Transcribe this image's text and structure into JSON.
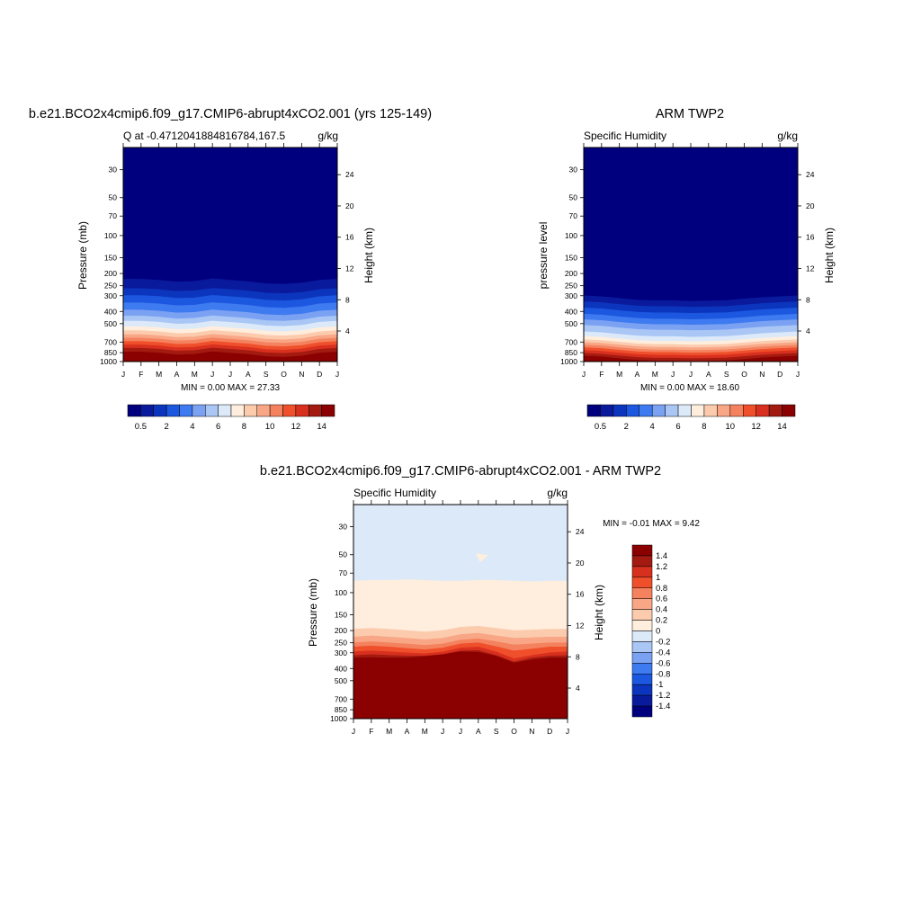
{
  "colors": {
    "seq": [
      "#00007f",
      "#0a1a9c",
      "#0c35bd",
      "#1c57e0",
      "#3e7af0",
      "#7ba1f2",
      "#a9c6f5",
      "#dbe9f9",
      "#ffeedd",
      "#fccbae",
      "#f8a686",
      "#f4825e",
      "#f04f2c",
      "#d7301f",
      "#a31a10",
      "#8b0000"
    ],
    "diff": [
      "#00007f",
      "#0a1a9c",
      "#0c35bd",
      "#1c57e0",
      "#3e7af0",
      "#7ba1f2",
      "#a9c6f5",
      "#dbe9f9",
      "#ffeedd",
      "#fccbae",
      "#f8a686",
      "#f4825e",
      "#f04f2c",
      "#d7301f",
      "#a31a10",
      "#8b0000"
    ]
  },
  "chart_data": [
    {
      "type": "heatmap",
      "id": "model",
      "title": "b.e21.BCO2x4cmip6.f09_g17.CMIP6-abrupt4xCO2.001 (yrs 125-149)",
      "left_subtitle": "Q at -0.4712041884816784,167.5",
      "right_subtitle": "g/kg",
      "ylabel": "Pressure (mb)",
      "y2label": "Height (km)",
      "x_months": [
        "J",
        "F",
        "M",
        "A",
        "M",
        "J",
        "J",
        "A",
        "S",
        "O",
        "N",
        "D",
        "J"
      ],
      "y_pressure_ticks": [
        30,
        50,
        70,
        100,
        150,
        200,
        250,
        300,
        400,
        500,
        700,
        850,
        1000
      ],
      "y2_height_ticks": [
        4,
        8,
        12,
        16,
        20,
        24
      ],
      "stats": "MIN =   0.00 MAX =  27.33",
      "colorbar_labels": [
        "0.5",
        "2",
        "4",
        "6",
        "8",
        "10",
        "12",
        "14"
      ],
      "levels": [
        0.5,
        1,
        2,
        3,
        4,
        5,
        6,
        7,
        8,
        9,
        10,
        11,
        12,
        13,
        14
      ],
      "pressure_at_level_by_month": [
        [
          222,
          222,
          226,
          233,
          231,
          220,
          226,
          232,
          241,
          243,
          238,
          226,
          222
        ],
        [
          263,
          263,
          268,
          277,
          274,
          262,
          268,
          275,
          286,
          289,
          283,
          268,
          263
        ],
        [
          299,
          299,
          304,
          315,
          312,
          298,
          305,
          313,
          325,
          329,
          322,
          305,
          299
        ],
        [
          342,
          342,
          348,
          360,
          356,
          340,
          348,
          357,
          372,
          376,
          368,
          348,
          342
        ],
        [
          390,
          390,
          397,
          411,
          407,
          389,
          398,
          408,
          424,
          429,
          420,
          397,
          390
        ],
        [
          435,
          435,
          443,
          458,
          453,
          433,
          443,
          455,
          473,
          478,
          468,
          443,
          435
        ],
        [
          478,
          478,
          487,
          504,
          499,
          477,
          488,
          500,
          520,
          526,
          515,
          487,
          478
        ],
        [
          528,
          528,
          538,
          556,
          550,
          526,
          539,
          552,
          574,
          581,
          568,
          538,
          528
        ],
        [
          568,
          568,
          579,
          599,
          593,
          566,
          580,
          594,
          618,
          625,
          612,
          579,
          568
        ],
        [
          611,
          611,
          622,
          644,
          637,
          609,
          624,
          639,
          664,
          672,
          658,
          623,
          611
        ],
        [
          650,
          650,
          662,
          685,
          678,
          648,
          664,
          680,
          707,
          715,
          700,
          663,
          650
        ],
        [
          693,
          693,
          705,
          730,
          723,
          690,
          707,
          724,
          753,
          762,
          746,
          706,
          693
        ],
        [
          737,
          737,
          750,
          777,
          769,
          734,
          752,
          771,
          801,
          811,
          794,
          751,
          737
        ],
        [
          783,
          783,
          797,
          825,
          817,
          780,
          799,
          819,
          851,
          862,
          843,
          798,
          783
        ],
        [
          840,
          840,
          855,
          885,
          876,
          836,
          857,
          878,
          912,
          924,
          904,
          856,
          840
        ]
      ]
    },
    {
      "type": "heatmap",
      "id": "obs",
      "title": "ARM TWP2",
      "left_subtitle": "Specific Humidity",
      "right_subtitle": "g/kg",
      "ylabel": "pressure level",
      "y2label": "Height (km)",
      "x_months": [
        "J",
        "F",
        "M",
        "A",
        "M",
        "J",
        "J",
        "A",
        "S",
        "O",
        "N",
        "D",
        "J"
      ],
      "y_pressure_ticks": [
        30,
        50,
        70,
        100,
        150,
        200,
        250,
        300,
        400,
        500,
        700,
        850,
        1000
      ],
      "y2_height_ticks": [
        4,
        8,
        12,
        16,
        20,
        24
      ],
      "stats": "MIN =   0.00 MAX =  18.60",
      "colorbar_labels": [
        "0.5",
        "2",
        "4",
        "6",
        "8",
        "10",
        "12",
        "14"
      ],
      "levels": [
        0.5,
        1,
        2,
        3,
        4,
        5,
        6,
        7,
        8,
        9,
        10,
        11,
        12,
        13,
        14
      ],
      "pressure_at_level_by_month": [
        [
          300,
          305,
          315,
          325,
          328,
          328,
          332,
          330,
          327,
          318,
          310,
          305,
          300
        ],
        [
          335,
          340,
          352,
          362,
          366,
          366,
          370,
          368,
          365,
          355,
          346,
          340,
          335
        ],
        [
          375,
          381,
          394,
          405,
          410,
          410,
          414,
          412,
          409,
          398,
          387,
          381,
          375
        ],
        [
          420,
          427,
          441,
          453,
          459,
          459,
          463,
          461,
          457,
          446,
          434,
          427,
          420
        ],
        [
          465,
          472,
          488,
          501,
          508,
          508,
          512,
          510,
          506,
          493,
          480,
          472,
          465
        ],
        [
          515,
          523,
          540,
          555,
          562,
          562,
          567,
          565,
          560,
          546,
          532,
          523,
          515
        ],
        [
          580,
          589,
          608,
          625,
          633,
          633,
          639,
          636,
          631,
          615,
          599,
          589,
          580
        ],
        [
          630,
          640,
          660,
          679,
          688,
          688,
          694,
          691,
          685,
          668,
          651,
          640,
          630
        ],
        [
          670,
          680,
          702,
          722,
          731,
          731,
          738,
          735,
          729,
          710,
          692,
          680,
          670
        ],
        [
          705,
          716,
          739,
          760,
          770,
          770,
          777,
          774,
          767,
          748,
          728,
          716,
          705
        ],
        [
          740,
          751,
          775,
          797,
          808,
          808,
          815,
          812,
          805,
          785,
          764,
          751,
          740
        ],
        [
          775,
          787,
          812,
          835,
          846,
          846,
          854,
          850,
          843,
          822,
          800,
          787,
          775
        ],
        [
          815,
          828,
          854,
          878,
          890,
          890,
          898,
          894,
          887,
          864,
          842,
          828,
          815
        ],
        [
          860,
          873,
          901,
          926,
          939,
          939,
          947,
          943,
          936,
          912,
          888,
          873,
          860
        ],
        [
          905,
          919,
          948,
          975,
          988,
          988,
          997,
          992,
          985,
          960,
          934,
          919,
          905
        ]
      ]
    },
    {
      "type": "heatmap",
      "id": "diff",
      "title": "b.e21.BCO2x4cmip6.f09_g17.CMIP6-abrupt4xCO2.001 - ARM TWP2",
      "left_subtitle": "Specific Humidity",
      "right_subtitle": "g/kg",
      "ylabel": "Pressure (mb)",
      "y2label": "Height (km)",
      "x_months": [
        "J",
        "F",
        "M",
        "A",
        "M",
        "J",
        "J",
        "A",
        "S",
        "O",
        "N",
        "D",
        "J"
      ],
      "y_pressure_ticks": [
        30,
        50,
        70,
        100,
        150,
        200,
        250,
        300,
        400,
        500,
        700,
        850,
        1000
      ],
      "y2_height_ticks": [
        4,
        8,
        12,
        16,
        20,
        24
      ],
      "stats": "MIN =  -0.01 MAX =   9.42",
      "colorbar_labels": [
        "1.4",
        "1.2",
        "1",
        "0.8",
        "0.6",
        "0.4",
        "0.2",
        "0",
        "-0.2",
        "-0.4",
        "-0.6",
        "-0.8",
        "-1",
        "-1.2",
        "-1.4"
      ],
      "levels": [
        0,
        0.2,
        0.4,
        0.6,
        0.8,
        1,
        1.2,
        1.4
      ],
      "pressure_at_level_by_month": [
        [
          81,
          80,
          80,
          79,
          80,
          81,
          81,
          80,
          80,
          81,
          82,
          81,
          81
        ],
        [
          195,
          192,
          195,
          200,
          205,
          200,
          188,
          185,
          192,
          200,
          198,
          195,
          195
        ],
        [
          225,
          220,
          225,
          230,
          236,
          230,
          215,
          210,
          220,
          230,
          228,
          225,
          225
        ],
        [
          250,
          245,
          250,
          256,
          262,
          255,
          238,
          232,
          245,
          260,
          255,
          250,
          250
        ],
        [
          270,
          265,
          270,
          277,
          284,
          275,
          255,
          250,
          268,
          290,
          280,
          270,
          270
        ],
        [
          295,
          290,
          295,
          300,
          305,
          296,
          275,
          270,
          295,
          335,
          315,
          300,
          295
        ],
        [
          316,
          310,
          315,
          318,
          318,
          310,
          290,
          288,
          315,
          355,
          330,
          318,
          316
        ],
        [
          330,
          328,
          330,
          330,
          322,
          310,
          295,
          298,
          320,
          362,
          342,
          330,
          330
        ]
      ],
      "patch": {
        "month": 6.95,
        "pressure": 53,
        "value": 0.1
      }
    }
  ]
}
